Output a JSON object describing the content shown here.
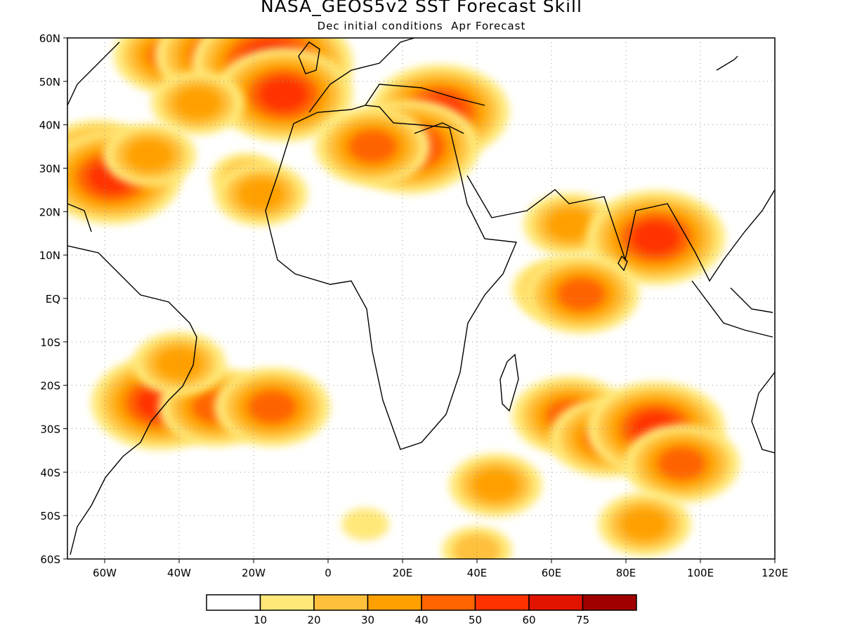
{
  "title": "NASA_GEOS5v2 SST Forecast Skill",
  "subtitle": "Dec initial conditions  Apr Forecast",
  "map": {
    "lon_range": [
      -70,
      120
    ],
    "lat_range": [
      -60,
      60
    ],
    "lon_ticks": [
      {
        "value": -60,
        "label": "60W"
      },
      {
        "value": -40,
        "label": "40W"
      },
      {
        "value": -20,
        "label": "20W"
      },
      {
        "value": 0,
        "label": "0"
      },
      {
        "value": 20,
        "label": "20E"
      },
      {
        "value": 40,
        "label": "40E"
      },
      {
        "value": 60,
        "label": "60E"
      },
      {
        "value": 80,
        "label": "80E"
      },
      {
        "value": 100,
        "label": "100E"
      },
      {
        "value": 120,
        "label": "120E"
      }
    ],
    "lat_ticks": [
      {
        "value": 60,
        "label": "60N"
      },
      {
        "value": 50,
        "label": "50N"
      },
      {
        "value": 40,
        "label": "40N"
      },
      {
        "value": 30,
        "label": "30N"
      },
      {
        "value": 20,
        "label": "20N"
      },
      {
        "value": 10,
        "label": "10N"
      },
      {
        "value": 0,
        "label": "EQ"
      },
      {
        "value": -10,
        "label": "10S"
      },
      {
        "value": -20,
        "label": "20S"
      },
      {
        "value": -30,
        "label": "30S"
      },
      {
        "value": -40,
        "label": "40S"
      },
      {
        "value": -50,
        "label": "50S"
      },
      {
        "value": -60,
        "label": "60S"
      }
    ],
    "grid": true
  },
  "colorbar": {
    "colors": [
      "#ffffff",
      "#ffe878",
      "#ffc03c",
      "#ffa000",
      "#ff6400",
      "#ff3200",
      "#e11400",
      "#a00000"
    ],
    "labels": [
      "10",
      "20",
      "30",
      "40",
      "50",
      "60",
      "75"
    ]
  },
  "skill_regions": [
    {
      "lon": -42,
      "lat": 56,
      "level": 4
    },
    {
      "lon": -28,
      "lat": 56,
      "level": 5
    },
    {
      "lon": -15,
      "lat": 54,
      "level": 6
    },
    {
      "lon": -12,
      "lat": 47,
      "level": 5
    },
    {
      "lon": -35,
      "lat": 45,
      "level": 3
    },
    {
      "lon": -62,
      "lat": 32,
      "level": 4
    },
    {
      "lon": -58,
      "lat": 28,
      "level": 5
    },
    {
      "lon": -48,
      "lat": 33,
      "level": 3
    },
    {
      "lon": -22,
      "lat": 28,
      "level": 2
    },
    {
      "lon": -18,
      "lat": 24,
      "level": 3
    },
    {
      "lon": 30,
      "lat": 43,
      "level": 5
    },
    {
      "lon": 22,
      "lat": 35,
      "level": 5
    },
    {
      "lon": 12,
      "lat": 35,
      "level": 4
    },
    {
      "lon": 65,
      "lat": 17,
      "level": 3
    },
    {
      "lon": 88,
      "lat": 14,
      "level": 5
    },
    {
      "lon": 62,
      "lat": 2,
      "level": 3
    },
    {
      "lon": 68,
      "lat": 1,
      "level": 4
    },
    {
      "lon": -45,
      "lat": -24,
      "level": 5
    },
    {
      "lon": -30,
      "lat": -25,
      "level": 4
    },
    {
      "lon": -15,
      "lat": -25,
      "level": 4
    },
    {
      "lon": -40,
      "lat": -15,
      "level": 3
    },
    {
      "lon": 65,
      "lat": -27,
      "level": 4
    },
    {
      "lon": 75,
      "lat": -32,
      "level": 4
    },
    {
      "lon": 88,
      "lat": -30,
      "level": 5
    },
    {
      "lon": 95,
      "lat": -38,
      "level": 4
    },
    {
      "lon": 45,
      "lat": -43,
      "level": 3
    },
    {
      "lon": 85,
      "lat": -52,
      "level": 3
    },
    {
      "lon": 40,
      "lat": -58,
      "level": 2
    },
    {
      "lon": 10,
      "lat": -52,
      "level": 1
    }
  ]
}
